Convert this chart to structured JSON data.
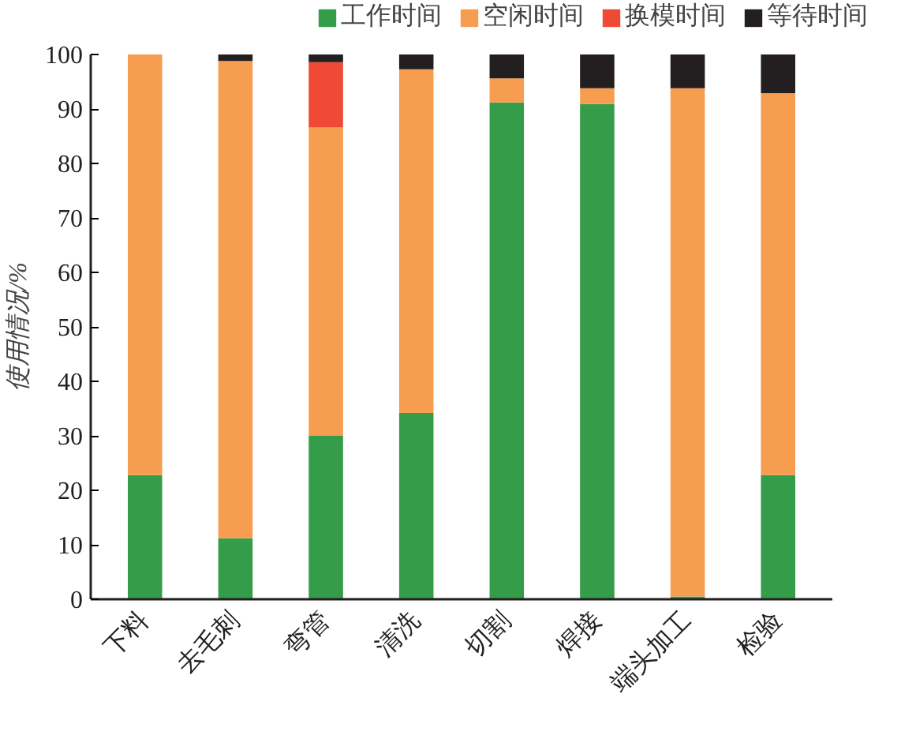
{
  "chart_data": {
    "type": "bar",
    "stacked": true,
    "ylabel": "使用情况/%",
    "categories": [
      "下料",
      "去毛刺",
      "弯管",
      "清洗",
      "切割",
      "焊接",
      "端头加工",
      "检验"
    ],
    "series": [
      {
        "name": "工作时间",
        "color": "#359d49",
        "values": [
          22.8,
          11.2,
          30.0,
          34.2,
          91.2,
          90.9,
          0.5,
          22.8
        ]
      },
      {
        "name": "空闲时间",
        "color": "#f79d50",
        "values": [
          77.2,
          87.6,
          56.6,
          63.1,
          4.4,
          2.9,
          93.3,
          70.1
        ]
      },
      {
        "name": "换模时间",
        "color": "#ef4a36",
        "values": [
          0,
          0,
          12.0,
          0,
          0,
          0,
          0,
          0
        ]
      },
      {
        "name": "等待时间",
        "color": "#231f20",
        "values": [
          0,
          1.2,
          1.4,
          2.7,
          4.4,
          6.2,
          6.2,
          7.1
        ]
      }
    ],
    "ylim": [
      0,
      100
    ],
    "yticks": [
      0,
      10,
      20,
      30,
      40,
      50,
      60,
      70,
      80,
      90,
      100
    ],
    "grid": false,
    "legend": "top"
  }
}
